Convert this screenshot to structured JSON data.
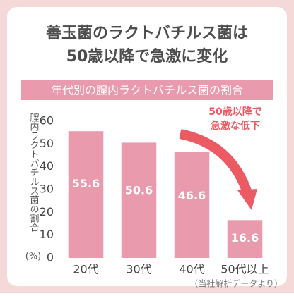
{
  "chart_data": {
    "type": "bar",
    "title": [
      "善玉菌のラクトバチルス菌は",
      "50歳以降で急激に変化"
    ],
    "subtitle": "年代別の膣内ラクトバチルス菌の割合",
    "ylabel": "膣内ラクトバチルス菌の割合",
    "yunit": "(%)",
    "categories": [
      "20代",
      "30代",
      "40代",
      "50代以上"
    ],
    "values": [
      55.6,
      50.6,
      46.6,
      16.6
    ],
    "color": "#e99aac",
    "ylim": [
      0,
      60
    ],
    "yticks": [
      0,
      10,
      20,
      30,
      40,
      50,
      60
    ],
    "annotation": [
      "50歳以降で",
      "急激な低下"
    ],
    "source": "（当社解析データより）"
  }
}
